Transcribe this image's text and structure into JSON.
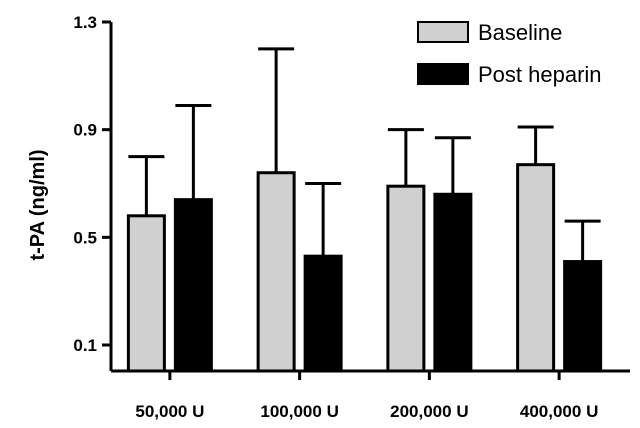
{
  "chart_data": {
    "type": "bar",
    "ylabel": "t-PA (ng/ml)",
    "xlabel": "",
    "ylim": [
      0.1,
      1.3
    ],
    "yticks": [
      0.1,
      0.5,
      0.9,
      1.3
    ],
    "ytick_labels": [
      "0.1",
      "0.5",
      "0.9",
      "1.3"
    ],
    "categories": [
      "50,000 U",
      "100,000 U",
      "200,000 U",
      "400,000 U"
    ],
    "series": [
      {
        "name": "Baseline",
        "color": "#d0d0d0",
        "values": [
          0.58,
          0.74,
          0.69,
          0.77
        ],
        "error_plus": [
          0.22,
          0.46,
          0.21,
          0.14
        ]
      },
      {
        "name": "Post heparin",
        "color": "#000000",
        "values": [
          0.64,
          0.43,
          0.66,
          0.41
        ],
        "error_plus": [
          0.35,
          0.27,
          0.21,
          0.15
        ]
      }
    ],
    "grid": false,
    "legend_position": "top-right",
    "error_bars": "upper only"
  }
}
